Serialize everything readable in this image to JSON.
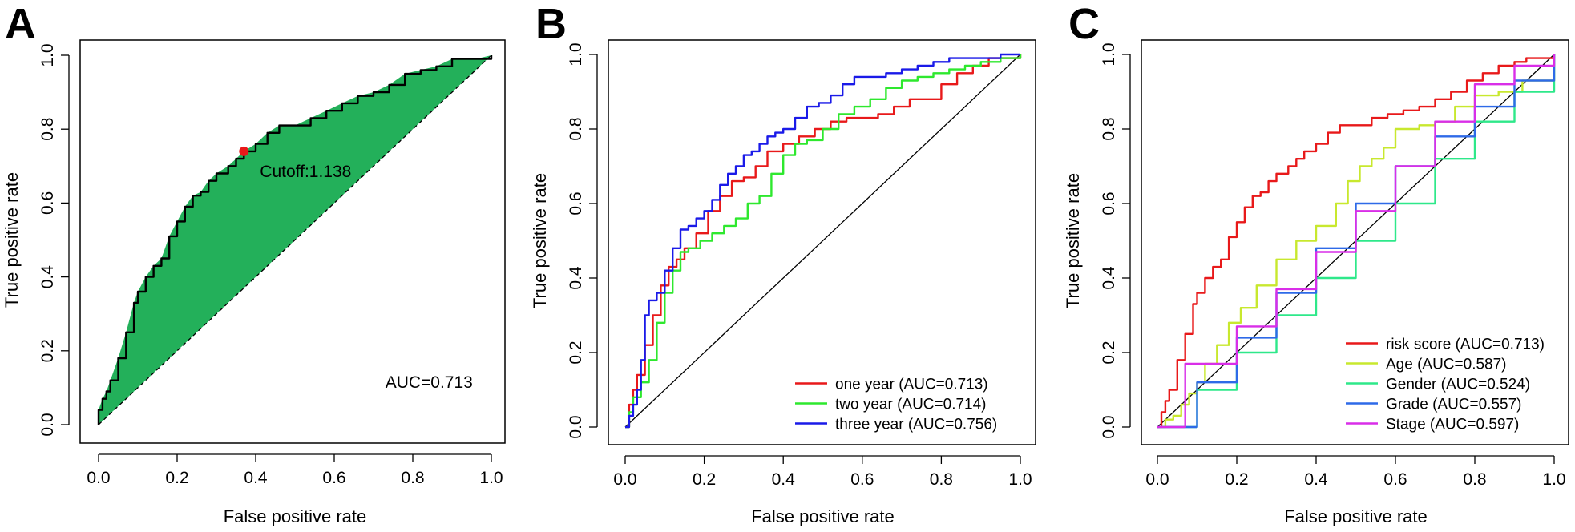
{
  "chart_data": [
    {
      "type": "line",
      "panel": "A",
      "xlabel": "False positive rate",
      "ylabel": "True positive rate",
      "xlim": [
        0,
        1
      ],
      "ylim": [
        0,
        1
      ],
      "xticks": [
        "0.0",
        "0.2",
        "0.4",
        "0.6",
        "0.8",
        "1.0"
      ],
      "yticks": [
        "0.0",
        "0.2",
        "0.4",
        "0.6",
        "0.8",
        "1.0"
      ],
      "fill_color": "#23b05a",
      "cutoff_point": {
        "x": 0.37,
        "y": 0.74,
        "label": "Cutoff:1.138",
        "color": "#e8191a"
      },
      "auc_label": "AUC=0.713",
      "series": [
        {
          "color": "#000000",
          "x": [
            0.0,
            0.0,
            0.01,
            0.02,
            0.03,
            0.05,
            0.07,
            0.09,
            0.1,
            0.12,
            0.14,
            0.16,
            0.18,
            0.2,
            0.22,
            0.24,
            0.26,
            0.28,
            0.3,
            0.33,
            0.35,
            0.37,
            0.4,
            0.43,
            0.46,
            0.5,
            0.54,
            0.58,
            0.62,
            0.66,
            0.7,
            0.74,
            0.78,
            0.82,
            0.86,
            0.9,
            0.93,
            0.96,
            1.0
          ],
          "y": [
            0.0,
            0.04,
            0.07,
            0.09,
            0.12,
            0.18,
            0.25,
            0.33,
            0.36,
            0.4,
            0.43,
            0.45,
            0.51,
            0.55,
            0.59,
            0.62,
            0.63,
            0.66,
            0.68,
            0.7,
            0.72,
            0.74,
            0.76,
            0.79,
            0.81,
            0.81,
            0.83,
            0.85,
            0.87,
            0.89,
            0.9,
            0.92,
            0.95,
            0.96,
            0.97,
            0.99,
            0.99,
            0.99,
            1.0
          ]
        }
      ],
      "diagonal": true
    },
    {
      "type": "line",
      "panel": "B",
      "xlabel": "False positive rate",
      "ylabel": "True positive rate",
      "xlim": [
        0,
        1
      ],
      "ylim": [
        0,
        1
      ],
      "xticks": [
        "0.0",
        "0.2",
        "0.4",
        "0.6",
        "0.8",
        "1.0"
      ],
      "yticks": [
        "0.0",
        "0.2",
        "0.4",
        "0.6",
        "0.8",
        "1.0"
      ],
      "legend_position": "bottom-right",
      "diagonal": true,
      "series": [
        {
          "name": "one year (AUC=0.713)",
          "color": "#e8191a",
          "x": [
            0.0,
            0.01,
            0.02,
            0.03,
            0.05,
            0.07,
            0.09,
            0.11,
            0.13,
            0.15,
            0.18,
            0.21,
            0.24,
            0.27,
            0.3,
            0.33,
            0.36,
            0.4,
            0.44,
            0.48,
            0.52,
            0.56,
            0.6,
            0.64,
            0.68,
            0.72,
            0.76,
            0.8,
            0.84,
            0.88,
            0.92,
            0.96,
            1.0
          ],
          "y": [
            0.0,
            0.06,
            0.1,
            0.14,
            0.22,
            0.3,
            0.38,
            0.43,
            0.45,
            0.48,
            0.52,
            0.58,
            0.62,
            0.66,
            0.67,
            0.7,
            0.74,
            0.76,
            0.78,
            0.8,
            0.82,
            0.83,
            0.83,
            0.84,
            0.86,
            0.88,
            0.88,
            0.92,
            0.95,
            0.97,
            0.99,
            0.99,
            1.0
          ]
        },
        {
          "name": "two year (AUC=0.714)",
          "color": "#2ee82e",
          "x": [
            0.0,
            0.01,
            0.02,
            0.04,
            0.06,
            0.08,
            0.1,
            0.12,
            0.14,
            0.16,
            0.19,
            0.22,
            0.25,
            0.28,
            0.31,
            0.34,
            0.37,
            0.4,
            0.43,
            0.46,
            0.5,
            0.54,
            0.58,
            0.62,
            0.66,
            0.7,
            0.74,
            0.78,
            0.82,
            0.86,
            0.9,
            0.95,
            1.0
          ],
          "y": [
            0.0,
            0.04,
            0.08,
            0.12,
            0.18,
            0.28,
            0.36,
            0.42,
            0.47,
            0.48,
            0.5,
            0.52,
            0.54,
            0.56,
            0.6,
            0.62,
            0.68,
            0.73,
            0.76,
            0.77,
            0.8,
            0.84,
            0.86,
            0.88,
            0.91,
            0.93,
            0.94,
            0.95,
            0.96,
            0.97,
            0.98,
            0.99,
            1.0
          ]
        },
        {
          "name": "three year (AUC=0.756)",
          "color": "#1a1ae8",
          "x": [
            0.0,
            0.01,
            0.02,
            0.03,
            0.04,
            0.05,
            0.06,
            0.08,
            0.1,
            0.12,
            0.14,
            0.16,
            0.18,
            0.2,
            0.22,
            0.24,
            0.26,
            0.28,
            0.3,
            0.32,
            0.34,
            0.36,
            0.38,
            0.4,
            0.43,
            0.46,
            0.49,
            0.52,
            0.55,
            0.58,
            0.62,
            0.66,
            0.7,
            0.74,
            0.78,
            0.82,
            0.86,
            0.9,
            0.95,
            1.0
          ],
          "y": [
            0.0,
            0.03,
            0.06,
            0.1,
            0.18,
            0.3,
            0.34,
            0.36,
            0.42,
            0.48,
            0.53,
            0.54,
            0.56,
            0.58,
            0.61,
            0.65,
            0.68,
            0.7,
            0.73,
            0.74,
            0.76,
            0.78,
            0.79,
            0.8,
            0.83,
            0.86,
            0.87,
            0.89,
            0.92,
            0.94,
            0.94,
            0.95,
            0.96,
            0.97,
            0.98,
            0.99,
            0.99,
            0.99,
            1.0,
            1.0
          ]
        }
      ]
    },
    {
      "type": "line",
      "panel": "C",
      "xlabel": "False positive rate",
      "ylabel": "True positive rate",
      "xlim": [
        0,
        1
      ],
      "ylim": [
        0,
        1
      ],
      "xticks": [
        "0.0",
        "0.2",
        "0.4",
        "0.6",
        "0.8",
        "1.0"
      ],
      "yticks": [
        "0.0",
        "0.2",
        "0.4",
        "0.6",
        "0.8",
        "1.0"
      ],
      "legend_position": "bottom-right",
      "diagonal": true,
      "series": [
        {
          "name": "risk score (AUC=0.713)",
          "color": "#e8191a",
          "x": [
            0.0,
            0.01,
            0.02,
            0.03,
            0.05,
            0.07,
            0.09,
            0.1,
            0.12,
            0.14,
            0.16,
            0.18,
            0.2,
            0.22,
            0.24,
            0.26,
            0.28,
            0.3,
            0.33,
            0.35,
            0.37,
            0.4,
            0.43,
            0.46,
            0.5,
            0.54,
            0.58,
            0.62,
            0.66,
            0.7,
            0.74,
            0.78,
            0.82,
            0.86,
            0.9,
            0.93,
            0.96,
            1.0
          ],
          "y": [
            0.0,
            0.04,
            0.07,
            0.1,
            0.18,
            0.25,
            0.33,
            0.36,
            0.4,
            0.43,
            0.45,
            0.51,
            0.55,
            0.59,
            0.62,
            0.63,
            0.66,
            0.68,
            0.7,
            0.72,
            0.74,
            0.76,
            0.79,
            0.81,
            0.81,
            0.83,
            0.84,
            0.85,
            0.86,
            0.88,
            0.9,
            0.93,
            0.95,
            0.97,
            0.98,
            0.99,
            0.99,
            1.0
          ]
        },
        {
          "name": "Age (AUC=0.587)",
          "color": "#c8e82e",
          "x": [
            0.0,
            0.02,
            0.04,
            0.06,
            0.08,
            0.1,
            0.12,
            0.15,
            0.18,
            0.21,
            0.25,
            0.3,
            0.35,
            0.4,
            0.45,
            0.48,
            0.51,
            0.54,
            0.57,
            0.6,
            0.63,
            0.66,
            0.7,
            0.75,
            0.8,
            0.86,
            0.92,
            1.0
          ],
          "y": [
            0.0,
            0.02,
            0.03,
            0.06,
            0.09,
            0.12,
            0.17,
            0.22,
            0.28,
            0.32,
            0.38,
            0.45,
            0.5,
            0.54,
            0.6,
            0.66,
            0.7,
            0.72,
            0.75,
            0.8,
            0.8,
            0.81,
            0.82,
            0.86,
            0.89,
            0.9,
            0.93,
            1.0
          ]
        },
        {
          "name": "Gender (AUC=0.524)",
          "color": "#2ee88a",
          "x": [
            0.0,
            0.1,
            0.2,
            0.3,
            0.4,
            0.5,
            0.6,
            0.7,
            0.8,
            0.9,
            1.0
          ],
          "y": [
            0.0,
            0.1,
            0.2,
            0.3,
            0.4,
            0.5,
            0.6,
            0.72,
            0.82,
            0.9,
            1.0
          ]
        },
        {
          "name": "Grade (AUC=0.557)",
          "color": "#2e6ae8",
          "x": [
            0.0,
            0.1,
            0.2,
            0.3,
            0.4,
            0.5,
            0.6,
            0.7,
            0.8,
            0.9,
            1.0
          ],
          "y": [
            0.0,
            0.12,
            0.24,
            0.36,
            0.48,
            0.6,
            0.7,
            0.78,
            0.86,
            0.93,
            1.0
          ]
        },
        {
          "name": "Stage (AUC=0.597)",
          "color": "#d92ee8",
          "x": [
            0.0,
            0.07,
            0.2,
            0.3,
            0.4,
            0.5,
            0.6,
            0.7,
            0.8,
            0.9,
            1.0
          ],
          "y": [
            0.0,
            0.17,
            0.27,
            0.37,
            0.47,
            0.58,
            0.7,
            0.82,
            0.92,
            0.97,
            1.0
          ]
        }
      ]
    }
  ]
}
